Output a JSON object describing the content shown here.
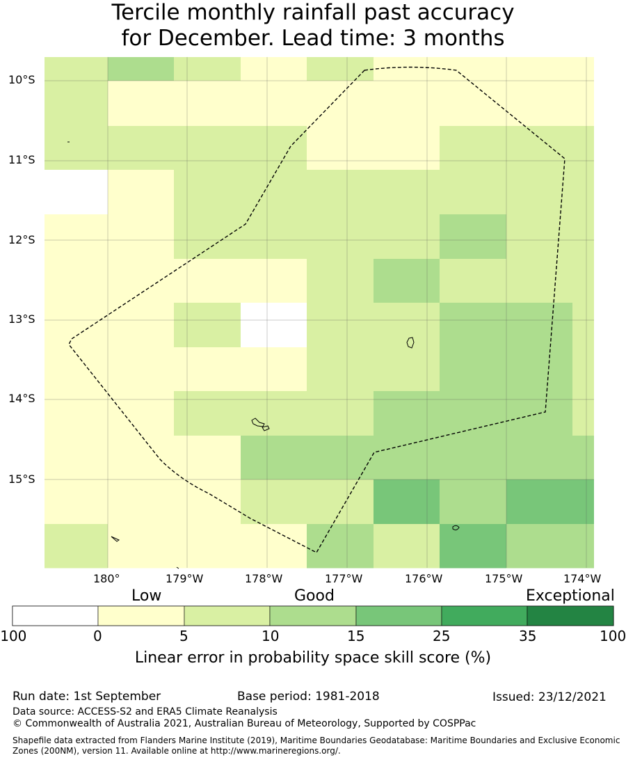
{
  "title": {
    "line1": "Tercile monthly rainfall past accuracy",
    "line2": "for December. Lead time: 3 months"
  },
  "map": {
    "lat_labels": [
      "10°S",
      "11°S",
      "12°S",
      "13°S",
      "14°S",
      "15°S"
    ],
    "lon_labels": [
      "180°",
      "179°W",
      "178°W",
      "177°W",
      "176°W",
      "175°W",
      "174°W"
    ],
    "colors": {
      "c0": "#ffffff",
      "c1": "#ffffcc",
      "c2": "#d9f0a3",
      "c3": "#addd8e",
      "c4": "#78c679",
      "c5": "#41ab5d",
      "c6": "#238443"
    },
    "grid_columns_lon": [
      "180.8°E",
      "180°",
      "179.2°W",
      "178.3°W",
      "177.5°W",
      "176.7°W",
      "175.8°W",
      "175°W",
      "174.2°W"
    ],
    "grid_rows_lat": [
      "9.7°S",
      "10.3°S",
      "10.8°S",
      "11.4°S",
      "11.9°S",
      "12.5°S",
      "13.1°S",
      "13.6°S",
      "14.2°S",
      "14.8°S",
      "15.3°S",
      "15.9°S",
      "16.4°S"
    ],
    "skill_categories_grid": [
      [
        2,
        3,
        2,
        1,
        2,
        1,
        1,
        1
      ],
      [
        2,
        1,
        1,
        1,
        1,
        1,
        1,
        1
      ],
      [
        2,
        2,
        2,
        2,
        1,
        1,
        2,
        2
      ],
      [
        0,
        1,
        2,
        2,
        2,
        2,
        2,
        2
      ],
      [
        1,
        1,
        2,
        2,
        2,
        2,
        3,
        2
      ],
      [
        1,
        1,
        1,
        1,
        2,
        3,
        2,
        2
      ],
      [
        1,
        1,
        2,
        0,
        2,
        2,
        3,
        3
      ],
      [
        1,
        1,
        1,
        1,
        2,
        2,
        3,
        3
      ],
      [
        1,
        1,
        2,
        2,
        2,
        3,
        3,
        3
      ],
      [
        1,
        1,
        1,
        3,
        3,
        3,
        3,
        3
      ],
      [
        1,
        1,
        1,
        2,
        2,
        4,
        3,
        4
      ],
      [
        2,
        1,
        1,
        1,
        3,
        2,
        4,
        3
      ]
    ],
    "partial_column_note": "eastern column ends at 173.9°W"
  },
  "colorbar": {
    "categories": [
      "Low",
      "Good",
      "Exceptional"
    ],
    "ticks": [
      "-100",
      "0",
      "5",
      "10",
      "15",
      "25",
      "35",
      "100"
    ],
    "title": "Linear error in probability space skill score (%)"
  },
  "footer": {
    "run_date": "Run date: 1st September",
    "base_period": "Base period: 1981-2018",
    "issued": "Issued: 23/12/2021",
    "data_source": "Data source: ACCESS-S2 and ERA5 Climate Reanalysis",
    "copyright": "© Commonwealth of Australia 2021, Australian Bureau of Meteorology, Supported by COSPPac",
    "shapefile_line1": "Shapefile data extracted from Flanders Marine Institute (2019), Maritime Boundaries Geodatabase: Maritime Boundaries and Exclusive Economic",
    "shapefile_line2": "Zones (200NM), version 11. Available online at http://www.marineregions.org/."
  }
}
